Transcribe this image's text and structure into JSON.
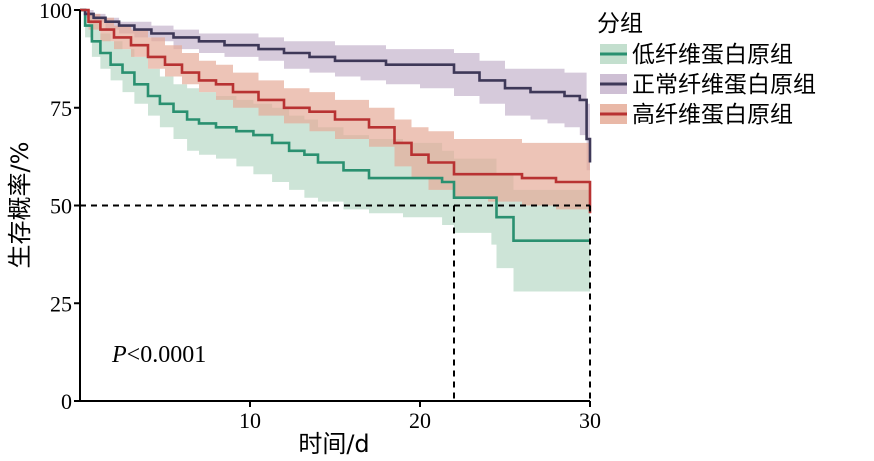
{
  "chart_data": {
    "type": "line",
    "xlabel": "时间/d",
    "ylabel": "生存概率/%",
    "xlim": [
      0,
      30
    ],
    "ylim": [
      0,
      100
    ],
    "xticks": [
      10,
      20,
      30
    ],
    "yticks": [
      0,
      25,
      50,
      75,
      100
    ],
    "legend_title": "分组",
    "legend_position": "top-right",
    "annotation": "P<0.0001",
    "annotation_prefix": "P",
    "annotation_rest": "<0.0001",
    "reference_lines": {
      "survival": 50,
      "x_values": [
        22,
        30
      ]
    },
    "series": [
      {
        "name": "低纤维蛋白原组",
        "color": "#2a9070",
        "fill": "#b8d9c6",
        "x": [
          0,
          0.3,
          0.7,
          1.2,
          1.8,
          2.5,
          3.2,
          4.0,
          4.7,
          5.5,
          6.3,
          7.0,
          8.0,
          9.2,
          10.2,
          11.3,
          12.3,
          13.2,
          14.0,
          15.5,
          17.0,
          19.0,
          21.3,
          22.0,
          24.2,
          24.5,
          25.5,
          30
        ],
        "y": [
          100,
          96,
          92,
          89,
          86,
          84,
          81,
          78,
          76,
          74,
          72,
          71,
          70,
          69,
          68,
          66,
          64,
          63,
          61,
          59,
          57,
          57,
          56,
          52,
          52,
          47,
          41,
          41
        ],
        "lower": [
          100,
          93,
          88,
          85,
          82,
          79,
          76,
          73,
          70,
          67,
          64,
          63,
          62,
          60,
          58,
          56,
          54,
          52,
          51,
          49,
          48,
          47,
          45,
          43,
          40,
          34,
          28,
          28
        ],
        "upper": [
          100,
          99,
          97,
          94,
          92,
          90,
          88,
          85,
          83,
          81,
          80,
          79,
          78,
          77,
          76,
          75,
          73,
          72,
          70,
          68,
          67,
          66,
          64,
          62,
          62,
          58,
          54,
          54
        ]
      },
      {
        "name": "正常纤维蛋白原组",
        "color": "#3e3858",
        "fill": "#c5b4cc",
        "x": [
          0,
          0.3,
          0.8,
          1.5,
          2.3,
          3.2,
          4.2,
          5.5,
          7.0,
          8.5,
          10.5,
          12.0,
          13.5,
          15.0,
          16.5,
          18.0,
          20.0,
          22.0,
          23.5,
          25.0,
          26.5,
          27.5,
          28.5,
          29.4,
          29.8,
          30
        ],
        "y": [
          100,
          99,
          98,
          97,
          96,
          95,
          94,
          93,
          92,
          91,
          90,
          89,
          88,
          87,
          87,
          86,
          86,
          84,
          82,
          80,
          79,
          79,
          78,
          77,
          67,
          61
        ],
        "lower": [
          100,
          98,
          97,
          95,
          94,
          93,
          92,
          90,
          89,
          88,
          87,
          85,
          84,
          83,
          82,
          81,
          80,
          78,
          76,
          73,
          72,
          71,
          70,
          68,
          59,
          55
        ],
        "upper": [
          100,
          100,
          99,
          98,
          97,
          97,
          96,
          95,
          94,
          94,
          93,
          92,
          92,
          91,
          91,
          90,
          90,
          89,
          87,
          85,
          85,
          85,
          84,
          84,
          76,
          70
        ]
      },
      {
        "name": "高纤维蛋白原组",
        "color": "#b83232",
        "fill": "#e5ab98",
        "x": [
          0,
          0.5,
          1.2,
          2.0,
          3.0,
          4.0,
          5.0,
          6.0,
          7.0,
          8.0,
          9.0,
          10.5,
          12.0,
          13.5,
          15.0,
          17.0,
          18.5,
          19.5,
          20.5,
          22.0,
          24.0,
          26.0,
          28.0,
          29.9,
          30
        ],
        "y": [
          100,
          97,
          95,
          93,
          91,
          88,
          86,
          84,
          82,
          81,
          79,
          77,
          75,
          74,
          72,
          70,
          66,
          63,
          61,
          58,
          58,
          57,
          56,
          56,
          48
        ],
        "lower": [
          100,
          95,
          92,
          90,
          88,
          85,
          83,
          81,
          79,
          77,
          75,
          73,
          71,
          69,
          67,
          65,
          60,
          57,
          54,
          52,
          51,
          50,
          49,
          49,
          46
        ],
        "upper": [
          100,
          99,
          98,
          96,
          95,
          93,
          91,
          89,
          87,
          86,
          84,
          82,
          80,
          79,
          77,
          75,
          72,
          70,
          69,
          67,
          67,
          66,
          66,
          66,
          60
        ]
      }
    ]
  }
}
